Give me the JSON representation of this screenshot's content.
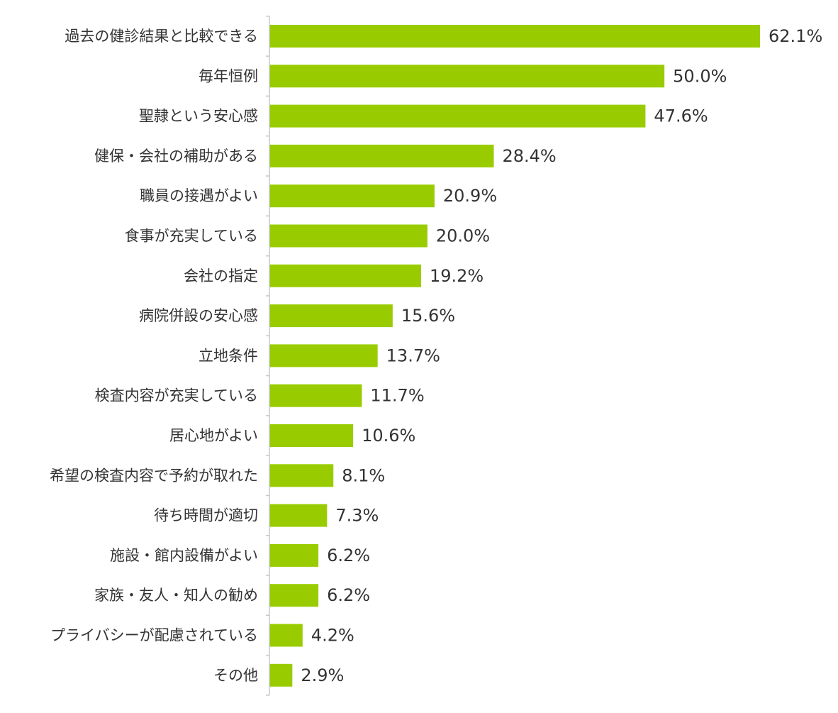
{
  "chart_data": {
    "type": "bar",
    "orientation": "horizontal",
    "categories": [
      "過去の健診結果と比較できる",
      "毎年恒例",
      "聖隷という安心感",
      "健保・会社の補助がある",
      "職員の接遇がよい",
      "食事が充実している",
      "会社の指定",
      "病院併設の安心感",
      "立地条件",
      "検査内容が充実している",
      "居心地がよい",
      "希望の検査内容で予約が取れた",
      "待ち時間が適切",
      "施設・館内設備がよい",
      "家族・友人・知人の勧め",
      "プライバシーが配慮されている",
      "その他"
    ],
    "values": [
      62.1,
      50.0,
      47.6,
      28.4,
      20.9,
      20.0,
      19.2,
      15.6,
      13.7,
      11.7,
      10.6,
      8.1,
      7.3,
      6.2,
      6.2,
      4.2,
      2.9
    ],
    "value_labels": [
      "62.1%",
      "50.0%",
      "47.6%",
      "28.4%",
      "20.9%",
      "20.0%",
      "19.2%",
      "15.6%",
      "13.7%",
      "11.7%",
      "10.6%",
      "8.1%",
      "7.3%",
      "6.2%",
      "6.2%",
      "4.2%",
      "2.9%"
    ],
    "xlim": [
      0,
      62.1
    ],
    "grid": false,
    "legend": "none",
    "bar_color": "#99cc00",
    "axis_color": "#c8c8c8",
    "text_color": "#333333"
  }
}
